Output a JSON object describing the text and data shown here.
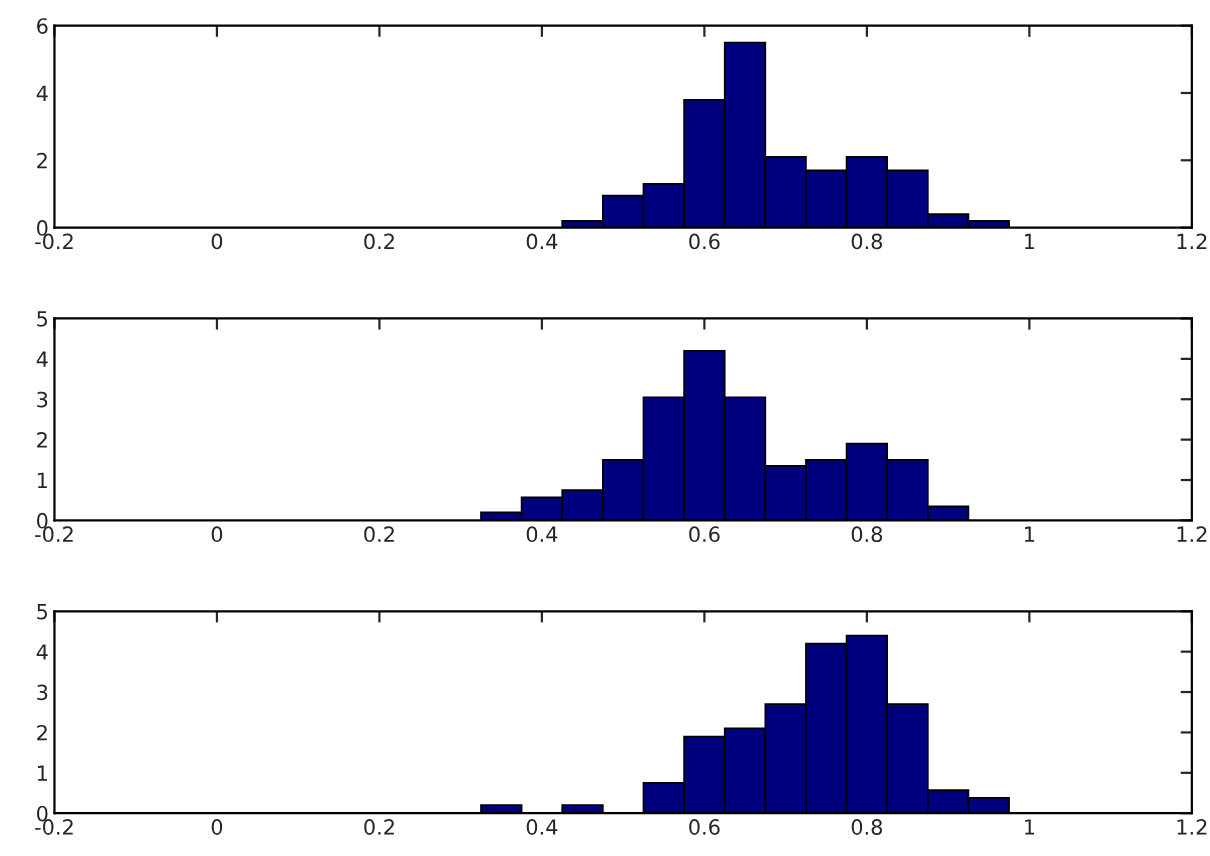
{
  "chart_data": [
    {
      "type": "histogram",
      "bins": [
        0.425,
        0.475,
        0.525,
        0.575,
        0.625,
        0.675,
        0.725,
        0.775,
        0.825,
        0.875,
        0.925,
        0.975
      ],
      "values": [
        0.2,
        0.95,
        1.3,
        3.8,
        5.5,
        2.1,
        1.7,
        2.1,
        1.7,
        0.4,
        0.2
      ],
      "color": "#00007f",
      "xlim": [
        -0.2,
        1.2
      ],
      "xticks": [
        -0.2,
        0,
        0.2,
        0.4,
        0.6,
        0.8,
        1,
        1.2
      ],
      "ylim": [
        0,
        6
      ],
      "yticks": [
        0,
        2,
        4,
        6
      ],
      "grid": false
    },
    {
      "type": "histogram",
      "bins": [
        0.325,
        0.375,
        0.425,
        0.475,
        0.525,
        0.575,
        0.625,
        0.675,
        0.725,
        0.775,
        0.825,
        0.875,
        0.925
      ],
      "values": [
        0.2,
        0.57,
        0.75,
        1.5,
        3.05,
        4.2,
        3.05,
        1.35,
        1.5,
        1.9,
        1.5,
        0.35
      ],
      "color": "#00007f",
      "xlim": [
        -0.2,
        1.2
      ],
      "xticks": [
        -0.2,
        0,
        0.2,
        0.4,
        0.6,
        0.8,
        1,
        1.2
      ],
      "ylim": [
        0,
        5
      ],
      "yticks": [
        0,
        1,
        2,
        3,
        4,
        5
      ],
      "grid": false
    },
    {
      "type": "histogram",
      "bins": [
        0.325,
        0.375,
        0.425,
        0.475,
        0.525,
        0.575,
        0.625,
        0.675,
        0.725,
        0.775,
        0.825,
        0.875,
        0.925,
        0.975
      ],
      "values": [
        0.2,
        0,
        0.2,
        0,
        0.75,
        1.9,
        2.1,
        2.7,
        4.2,
        4.4,
        2.7,
        0.57,
        0.38
      ],
      "color": "#00007f",
      "xlim": [
        -0.2,
        1.2
      ],
      "xticks": [
        -0.2,
        0,
        0.2,
        0.4,
        0.6,
        0.8,
        1,
        1.2
      ],
      "ylim": [
        0,
        5
      ],
      "yticks": [
        0,
        1,
        2,
        3,
        4,
        5
      ],
      "grid": false
    }
  ]
}
